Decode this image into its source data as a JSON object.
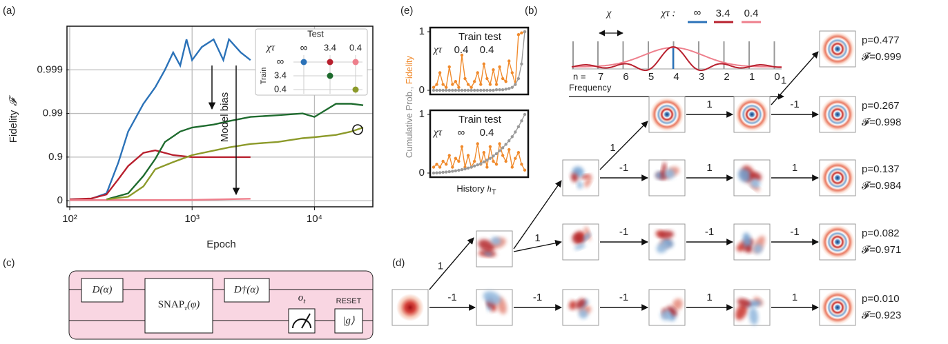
{
  "panel_labels": [
    "(a)",
    "(b)",
    "(c)",
    "(d)",
    "(e)"
  ],
  "chart_data": [
    {
      "type": "line",
      "x_label": "Epoch",
      "y_label": "Fidelity",
      "y_symbol": "𝓕",
      "annotation": "Model bias",
      "xscale": "log",
      "yscale": "infidelity-log",
      "xlim": [
        100,
        30000
      ],
      "ylim": [
        -0.38,
        0.9999
      ],
      "xticks": [
        {
          "value": 100,
          "label": "10²"
        },
        {
          "value": 1000,
          "label": "10³"
        },
        {
          "value": 10000,
          "label": "10⁴"
        }
      ],
      "yticks": [
        0,
        0.9,
        0.99,
        0.999
      ],
      "grid": true,
      "legend": {
        "test_label": "Test",
        "train_label": "Train",
        "symbol": "χτ",
        "columns": [
          "∞",
          "3.4",
          "0.4"
        ],
        "rows": [
          "∞",
          "3.4",
          "0.4"
        ]
      },
      "series": [
        {
          "color": "#2b72b8",
          "x": [
            100,
            150,
            200,
            250,
            300,
            400,
            500,
            600,
            700,
            800,
            900,
            1000,
            1200,
            1500,
            1800,
            2000,
            2500,
            3000
          ],
          "values": [
            0.067,
            0.1,
            0.32,
            0.868,
            0.974,
            0.994,
            0.9975,
            0.999,
            0.9996,
            0.9992,
            0.9998,
            0.9994,
            0.9997,
            0.9998,
            0.9994,
            0.9998,
            0.9996,
            0.9994
          ]
        },
        {
          "color": "#b8202e",
          "x": [
            100,
            150,
            200,
            250,
            300,
            400,
            500,
            700,
            1000,
            1500,
            2000,
            2500,
            3000
          ],
          "values": [
            0.07,
            0.11,
            0.28,
            0.68,
            0.84,
            0.92,
            0.93,
            0.91,
            0.9,
            0.9,
            0.9,
            0.9,
            0.9
          ]
        },
        {
          "color": "#ee7f8c",
          "x": [
            100,
            1000,
            3000
          ],
          "values": [
            0.03,
            0.04,
            0.1
          ]
        },
        {
          "color": "#1e6b2e",
          "x": [
            200,
            300,
            400,
            500,
            600,
            800,
            1000,
            1500,
            2000,
            3000,
            5000,
            8000,
            10000,
            15000,
            20000,
            25000
          ],
          "values": [
            0.07,
            0.32,
            0.73,
            0.89,
            0.955,
            0.974,
            0.979,
            0.982,
            0.985,
            0.988,
            0.989,
            0.99,
            0.988,
            0.994,
            0.994,
            0.9935
          ]
        },
        {
          "color": "#8c9a2a",
          "x": [
            200,
            300,
            400,
            500,
            700,
            1000,
            2000,
            3000,
            5000,
            8000,
            10000,
            15000,
            20000,
            25000
          ],
          "values": [
            0.07,
            0.19,
            0.53,
            0.81,
            0.87,
            0.91,
            0.94,
            0.95,
            0.955,
            0.963,
            0.965,
            0.969,
            0.974,
            0.979
          ]
        }
      ]
    },
    {
      "type": "line",
      "title": "Train test",
      "symbol": "χτ",
      "train": "0.4",
      "test": "0.4",
      "ylim": [
        0,
        1
      ],
      "yticks": [
        0,
        1
      ],
      "series": [
        {
          "color": "#f08a2c",
          "marker": true,
          "values": [
            0.05,
            0.1,
            0.3,
            0.1,
            0.05,
            0.4,
            0.1,
            0.15,
            0.05,
            0.6,
            0.2,
            0.1,
            0.05,
            0.15,
            0.3,
            0.1,
            0.45,
            0.2,
            0.1,
            0.35,
            0.1,
            0.4,
            0.2,
            0.15,
            0.5,
            0.3,
            0.1,
            0.95,
            0.98,
            1.0
          ]
        },
        {
          "color": "#9a9a9a",
          "marker": true,
          "values": [
            0,
            0,
            0,
            0,
            0,
            0,
            0,
            0,
            0,
            0,
            0,
            0,
            0,
            0,
            0,
            0,
            0,
            0,
            0,
            0,
            0.01,
            0.01,
            0.01,
            0.02,
            0.03,
            0.05,
            0.1,
            0.2,
            0.45,
            1.0
          ]
        }
      ]
    },
    {
      "type": "line",
      "title": "Train test",
      "symbol": "χτ",
      "train": "∞",
      "test": "0.4",
      "ylim": [
        0,
        1
      ],
      "yticks": [
        0,
        1
      ],
      "series": [
        {
          "color": "#f08a2c",
          "marker": true,
          "values": [
            0.1,
            0.15,
            0.1,
            0.2,
            0.15,
            0.3,
            0.1,
            0.25,
            0.2,
            0.45,
            0.1,
            0.3,
            0.1,
            0.2,
            0.5,
            0.15,
            0.35,
            0.1,
            0.45,
            0.2,
            0.15,
            0.5,
            0.3,
            0.2,
            0.4,
            0.1,
            0.25,
            0.35,
            0.15,
            0.05
          ]
        },
        {
          "color": "#9a9a9a",
          "marker": true,
          "values": [
            0,
            0.003,
            0.007,
            0.012,
            0.017,
            0.023,
            0.03,
            0.038,
            0.047,
            0.058,
            0.07,
            0.084,
            0.1,
            0.12,
            0.14,
            0.16,
            0.19,
            0.22,
            0.25,
            0.29,
            0.33,
            0.38,
            0.43,
            0.49,
            0.55,
            0.62,
            0.7,
            0.79,
            0.89,
            1.0
          ]
        }
      ]
    }
  ],
  "panel_e": {
    "y_label_prob": "Cumulative Prob., ",
    "y_label_fid": "Fidelity",
    "x_label": "History ",
    "x_symbol": "h",
    "x_symbol_sub": "T"
  },
  "panel_b": {
    "chi": "χ",
    "chitau": "χτ :",
    "values": [
      "∞",
      "3.4",
      "0.4"
    ],
    "n_label": "n =",
    "levels": [
      "7",
      "6",
      "5",
      "4",
      "3",
      "2",
      "1",
      "0"
    ],
    "x_label": "Frequency"
  },
  "panel_c": {
    "displace": "D(α)",
    "snap": "SNAP",
    "snap_sub": "τ",
    "snap_arg": "(φ)",
    "displace_dag": "D†(α)",
    "outcome": "o",
    "outcome_sub": "t",
    "reset": "RESET",
    "ground": "|g⟩"
  },
  "panel_d": {
    "edges": [
      "-1",
      "1",
      "-1",
      "-1",
      "1",
      "1",
      "1",
      "-1",
      "-1",
      "-1",
      "-1",
      "1",
      "1",
      "1",
      "1",
      "-1",
      "1"
    ],
    "results": [
      {
        "p": "p=0.477",
        "f": "𝓕=0.999"
      },
      {
        "p": "p=0.267",
        "f": "𝓕=0.998"
      },
      {
        "p": "p=0.137",
        "f": "𝓕=0.984"
      },
      {
        "p": "p=0.082",
        "f": "𝓕=0.971"
      },
      {
        "p": "p=0.010",
        "f": "𝓕=0.923"
      }
    ]
  }
}
